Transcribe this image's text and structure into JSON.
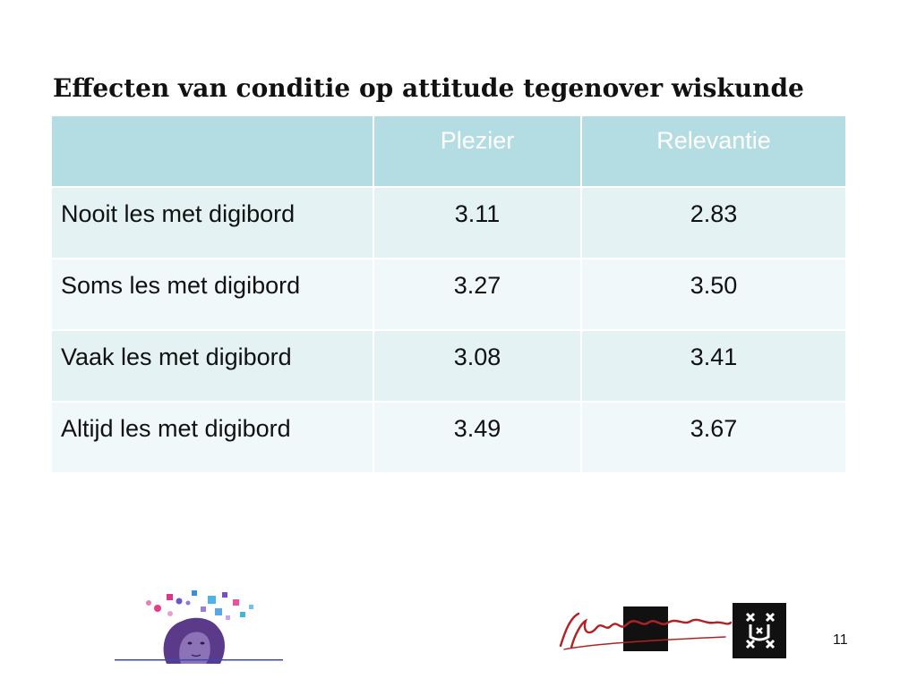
{
  "title": "Effecten van conditie op attitude tegenover wiskunde",
  "table": {
    "headers": [
      "",
      "Plezier",
      "Relevantie"
    ],
    "rows": [
      {
        "label": "Nooit les met digibord",
        "plezier": "3.11",
        "relevantie": "2.83"
      },
      {
        "label": "Soms les met digibord",
        "plezier": "3.27",
        "relevantie": "3.50"
      },
      {
        "label": "Vaak les met digibord",
        "plezier": "3.08",
        "relevantie": "3.41"
      },
      {
        "label": "Altijd les met digibord",
        "plezier": "3.49",
        "relevantie": "3.67"
      }
    ]
  },
  "footer": {
    "page_number": "11"
  },
  "colors": {
    "header_bg": "#b4dde3",
    "row_bg_odd": "#e4f2f4",
    "row_bg_even": "#f1f8f9",
    "header_text": "#ffffff",
    "logo_red": "#b22222"
  }
}
